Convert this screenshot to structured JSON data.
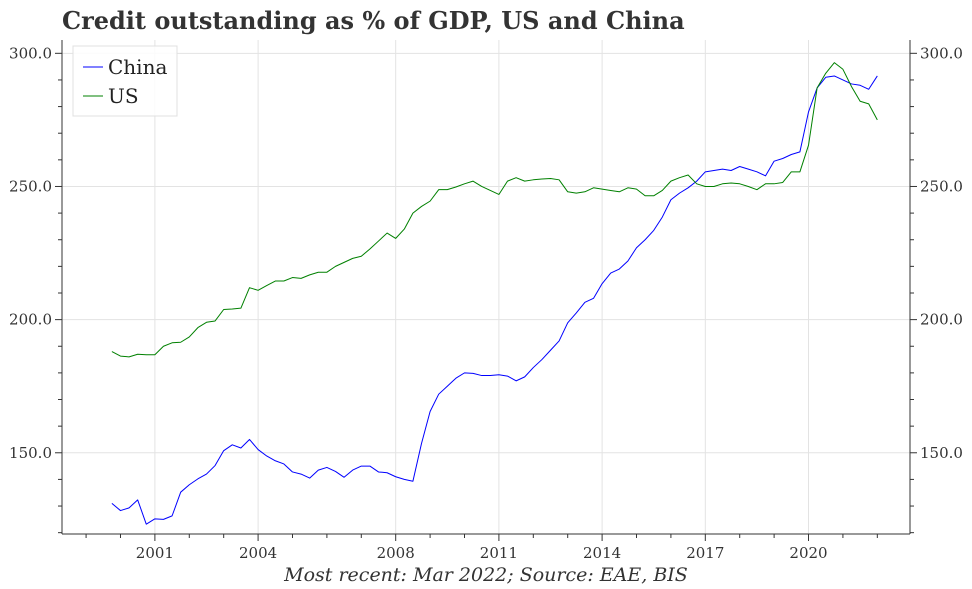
{
  "chart_data": {
    "type": "line",
    "title": "Credit outstanding as % of GDP, US and China",
    "caption": "Most recent: Mar 2022; Source: EAE, BIS",
    "xlabel": "",
    "ylabel": "",
    "xlim": [
      1998.3,
      2022.95
    ],
    "ylim": [
      119.5,
      305
    ],
    "x_ticks": [
      2001,
      2004,
      2008,
      2011,
      2014,
      2017,
      2020
    ],
    "x_tick_labels": [
      "2001",
      "2004",
      "2008",
      "2011",
      "2014",
      "2017",
      "2020"
    ],
    "y_ticks": [
      150,
      200,
      250,
      300
    ],
    "y_tick_labels": [
      "150.0",
      "200.0",
      "250.0",
      "300.0"
    ],
    "grid": true,
    "legend": {
      "position": "top-left"
    },
    "series": [
      {
        "name": "China",
        "color": "#0000ff",
        "points": [
          [
            1999.75,
            131.0
          ],
          [
            2000.0,
            128.3
          ],
          [
            2000.25,
            129.3
          ],
          [
            2000.5,
            132.3
          ],
          [
            2000.75,
            123.2
          ],
          [
            2001.0,
            125.2
          ],
          [
            2001.25,
            125.0
          ],
          [
            2001.5,
            126.3
          ],
          [
            2001.75,
            135.2
          ],
          [
            2002.0,
            138.0
          ],
          [
            2002.25,
            140.2
          ],
          [
            2002.5,
            142.0
          ],
          [
            2002.75,
            145.2
          ],
          [
            2003.0,
            150.8
          ],
          [
            2003.25,
            153.0
          ],
          [
            2003.5,
            151.8
          ],
          [
            2003.75,
            155.0
          ],
          [
            2004.0,
            151.2
          ],
          [
            2004.25,
            148.8
          ],
          [
            2004.5,
            147.0
          ],
          [
            2004.75,
            145.8
          ],
          [
            2005.0,
            142.8
          ],
          [
            2005.25,
            142.0
          ],
          [
            2005.5,
            140.5
          ],
          [
            2005.75,
            143.5
          ],
          [
            2006.0,
            144.5
          ],
          [
            2006.25,
            143.0
          ],
          [
            2006.5,
            140.8
          ],
          [
            2006.75,
            143.5
          ],
          [
            2007.0,
            145.0
          ],
          [
            2007.25,
            145.0
          ],
          [
            2007.5,
            142.8
          ],
          [
            2007.75,
            142.5
          ],
          [
            2008.0,
            141.0
          ],
          [
            2008.25,
            140.0
          ],
          [
            2008.5,
            139.3
          ],
          [
            2008.75,
            153.5
          ],
          [
            2009.0,
            165.5
          ],
          [
            2009.25,
            172.0
          ],
          [
            2009.5,
            175.0
          ],
          [
            2009.75,
            178.0
          ],
          [
            2010.0,
            180.0
          ],
          [
            2010.25,
            179.8
          ],
          [
            2010.5,
            179.0
          ],
          [
            2010.75,
            179.0
          ],
          [
            2011.0,
            179.3
          ],
          [
            2011.25,
            178.8
          ],
          [
            2011.5,
            177.0
          ],
          [
            2011.75,
            178.5
          ],
          [
            2012.0,
            182.0
          ],
          [
            2012.25,
            185.0
          ],
          [
            2012.5,
            188.5
          ],
          [
            2012.75,
            192.0
          ],
          [
            2013.0,
            198.8
          ],
          [
            2013.25,
            202.5
          ],
          [
            2013.5,
            206.5
          ],
          [
            2013.75,
            208.0
          ],
          [
            2014.0,
            213.5
          ],
          [
            2014.25,
            217.5
          ],
          [
            2014.5,
            219.0
          ],
          [
            2014.75,
            222.0
          ],
          [
            2015.0,
            227.0
          ],
          [
            2015.25,
            230.0
          ],
          [
            2015.5,
            233.5
          ],
          [
            2015.75,
            238.5
          ],
          [
            2016.0,
            245.0
          ],
          [
            2016.25,
            247.5
          ],
          [
            2016.5,
            249.5
          ],
          [
            2016.75,
            252.0
          ],
          [
            2017.0,
            255.5
          ],
          [
            2017.25,
            256.0
          ],
          [
            2017.5,
            256.5
          ],
          [
            2017.75,
            256.0
          ],
          [
            2018.0,
            257.5
          ],
          [
            2018.25,
            256.5
          ],
          [
            2018.5,
            255.5
          ],
          [
            2018.75,
            254.0
          ],
          [
            2019.0,
            259.5
          ],
          [
            2019.25,
            260.5
          ],
          [
            2019.5,
            262.0
          ],
          [
            2019.75,
            263.0
          ],
          [
            2020.0,
            278.0
          ],
          [
            2020.25,
            287.0
          ],
          [
            2020.5,
            291.0
          ],
          [
            2020.75,
            291.5
          ],
          [
            2021.0,
            290.0
          ],
          [
            2021.25,
            288.5
          ],
          [
            2021.5,
            288.0
          ],
          [
            2021.75,
            286.5
          ],
          [
            2022.0,
            291.5
          ]
        ]
      },
      {
        "name": "US",
        "color": "#008000",
        "points": [
          [
            1999.75,
            188.0
          ],
          [
            2000.0,
            186.3
          ],
          [
            2000.25,
            186.0
          ],
          [
            2000.5,
            187.0
          ],
          [
            2000.75,
            186.8
          ],
          [
            2001.0,
            186.8
          ],
          [
            2001.25,
            190.0
          ],
          [
            2001.5,
            191.3
          ],
          [
            2001.75,
            191.5
          ],
          [
            2002.0,
            193.5
          ],
          [
            2002.25,
            197.0
          ],
          [
            2002.5,
            199.0
          ],
          [
            2002.75,
            199.5
          ],
          [
            2003.0,
            203.8
          ],
          [
            2003.25,
            204.0
          ],
          [
            2003.5,
            204.3
          ],
          [
            2003.75,
            212.0
          ],
          [
            2004.0,
            211.0
          ],
          [
            2004.25,
            212.8
          ],
          [
            2004.5,
            214.5
          ],
          [
            2004.75,
            214.5
          ],
          [
            2005.0,
            215.8
          ],
          [
            2005.25,
            215.5
          ],
          [
            2005.5,
            216.8
          ],
          [
            2005.75,
            217.8
          ],
          [
            2006.0,
            217.8
          ],
          [
            2006.25,
            220.0
          ],
          [
            2006.5,
            221.5
          ],
          [
            2006.75,
            223.0
          ],
          [
            2007.0,
            223.8
          ],
          [
            2007.25,
            226.5
          ],
          [
            2007.5,
            229.5
          ],
          [
            2007.75,
            232.5
          ],
          [
            2008.0,
            230.5
          ],
          [
            2008.25,
            234.0
          ],
          [
            2008.5,
            240.0
          ],
          [
            2008.75,
            242.5
          ],
          [
            2009.0,
            244.5
          ],
          [
            2009.25,
            248.8
          ],
          [
            2009.5,
            248.8
          ],
          [
            2009.75,
            249.8
          ],
          [
            2010.0,
            251.0
          ],
          [
            2010.25,
            252.0
          ],
          [
            2010.5,
            250.0
          ],
          [
            2010.75,
            248.5
          ],
          [
            2011.0,
            247.0
          ],
          [
            2011.25,
            252.0
          ],
          [
            2011.5,
            253.3
          ],
          [
            2011.75,
            252.0
          ],
          [
            2012.0,
            252.5
          ],
          [
            2012.25,
            252.8
          ],
          [
            2012.5,
            253.0
          ],
          [
            2012.75,
            252.5
          ],
          [
            2013.0,
            248.0
          ],
          [
            2013.25,
            247.5
          ],
          [
            2013.5,
            248.0
          ],
          [
            2013.75,
            249.5
          ],
          [
            2014.0,
            249.0
          ],
          [
            2014.25,
            248.5
          ],
          [
            2014.5,
            248.0
          ],
          [
            2014.75,
            249.5
          ],
          [
            2015.0,
            249.0
          ],
          [
            2015.25,
            246.5
          ],
          [
            2015.5,
            246.5
          ],
          [
            2015.75,
            248.5
          ],
          [
            2016.0,
            252.0
          ],
          [
            2016.25,
            253.3
          ],
          [
            2016.5,
            254.3
          ],
          [
            2016.75,
            251.0
          ],
          [
            2017.0,
            250.0
          ],
          [
            2017.25,
            250.0
          ],
          [
            2017.5,
            251.0
          ],
          [
            2017.75,
            251.3
          ],
          [
            2018.0,
            251.0
          ],
          [
            2018.25,
            250.0
          ],
          [
            2018.5,
            248.8
          ],
          [
            2018.75,
            251.0
          ],
          [
            2019.0,
            251.0
          ],
          [
            2019.25,
            251.5
          ],
          [
            2019.5,
            255.5
          ],
          [
            2019.75,
            255.5
          ],
          [
            2020.0,
            265.5
          ],
          [
            2020.25,
            287.0
          ],
          [
            2020.5,
            292.5
          ],
          [
            2020.75,
            296.5
          ],
          [
            2021.0,
            294.0
          ],
          [
            2021.25,
            287.5
          ],
          [
            2021.5,
            282.0
          ],
          [
            2021.75,
            281.0
          ],
          [
            2022.0,
            275.0
          ]
        ]
      }
    ]
  }
}
